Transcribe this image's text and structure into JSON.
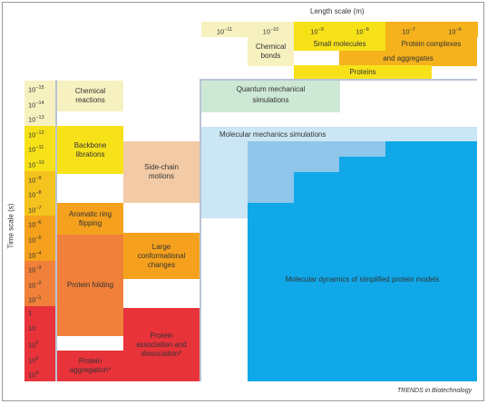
{
  "length_axis": {
    "title": "Length scale (m)",
    "ticks": [
      {
        "base": "10",
        "exp": "−11",
        "color": "#f7f1c0"
      },
      {
        "base": "10",
        "exp": "−10",
        "color": "#f7f1c0"
      },
      {
        "base": "10",
        "exp": "−9",
        "color": "#f7e21a"
      },
      {
        "base": "10",
        "exp": "−8",
        "color": "#f7e21a"
      },
      {
        "base": "10",
        "exp": "−7",
        "color": "#f5b21d"
      },
      {
        "base": "10",
        "exp": "−6",
        "color": "#f5b21d"
      }
    ]
  },
  "time_axis": {
    "title": "Time scale (s)",
    "ticks": [
      {
        "base": "10",
        "exp": "−15",
        "color": "#f7f1c0"
      },
      {
        "base": "10",
        "exp": "−14",
        "color": "#f7f1c0"
      },
      {
        "base": "10",
        "exp": "−13",
        "color": "#f7f1c0"
      },
      {
        "base": "10",
        "exp": "−12",
        "color": "#f7e21a"
      },
      {
        "base": "10",
        "exp": "−11",
        "color": "#f7e21a"
      },
      {
        "base": "10",
        "exp": "−10",
        "color": "#f7e21a"
      },
      {
        "base": "10",
        "exp": "−9",
        "color": "#f5c31d"
      },
      {
        "base": "10",
        "exp": "−8",
        "color": "#f5c31d"
      },
      {
        "base": "10",
        "exp": "−7",
        "color": "#f5c31d"
      },
      {
        "base": "10",
        "exp": "−6",
        "color": "#f5a11d"
      },
      {
        "base": "10",
        "exp": "−5",
        "color": "#f5a11d"
      },
      {
        "base": "10",
        "exp": "−4",
        "color": "#f5a11d"
      },
      {
        "base": "10",
        "exp": "−3",
        "color": "#f0803a"
      },
      {
        "base": "10",
        "exp": "−2",
        "color": "#f0803a"
      },
      {
        "base": "10",
        "exp": "−1",
        "color": "#f0803a"
      },
      {
        "base": "1",
        "exp": "",
        "color": "#e8333a"
      },
      {
        "base": "10",
        "exp": "",
        "color": "#e8333a"
      },
      {
        "base": "10",
        "exp": "2",
        "color": "#e8333a"
      },
      {
        "base": "10",
        "exp": "3",
        "color": "#e8333a"
      },
      {
        "base": "10",
        "exp": "4",
        "color": "#e8333a"
      }
    ]
  },
  "processes": [
    {
      "id": "chemical-bonds",
      "label": "Chemical\nbonds",
      "color": "#f7f1c0"
    },
    {
      "id": "small-molecules",
      "label": "Small molecules",
      "color": "#f7e21a"
    },
    {
      "id": "protein-complexes",
      "label": "Protein complexes",
      "color": "#f5b21d"
    },
    {
      "id": "and-aggregates",
      "label": "and aggregates",
      "color": "#f5b21d"
    },
    {
      "id": "proteins",
      "label": "Proteins",
      "color": "#f7e21a"
    },
    {
      "id": "chemical-reactions",
      "label": "Chemical\nreactions",
      "color": "#f7f1c0"
    },
    {
      "id": "backbone-librations",
      "label": "Backbone\nlibrations",
      "color": "#f7e21a"
    },
    {
      "id": "side-chain-motions",
      "label": "Side-chain\nmotions",
      "color": "#f2cba6"
    },
    {
      "id": "aromatic-ring-flipping",
      "label": "Aromatic ring\nflipping",
      "color": "#f5a11d"
    },
    {
      "id": "large-conformational-changes",
      "label": "Large\nconformational\nchanges",
      "color": "#f5a11d"
    },
    {
      "id": "protein-folding",
      "label": "Protein folding",
      "color": "#f0803a"
    },
    {
      "id": "protein-association",
      "label": "Protein\nassociation and\ndissociation*",
      "color": "#e8333a"
    },
    {
      "id": "protein-aggregation",
      "label": "Protein\naggregation*",
      "color": "#e8333a"
    }
  ],
  "simulations": [
    {
      "id": "quantum-mechanical",
      "label": "Quantum mechanical\nsimulations",
      "color": "#cde8d4"
    },
    {
      "id": "molecular-mechanics",
      "label": "Molecular mechanics simulations",
      "color": "#cbe6f5"
    },
    {
      "id": "molecular-dynamics-simplified",
      "label": "Molecular dynamics of simplified protein models",
      "color": "#10a8e8"
    }
  ],
  "md_steps_color": "#8fc6ea",
  "footer": "TRENDS in Biotechnology"
}
